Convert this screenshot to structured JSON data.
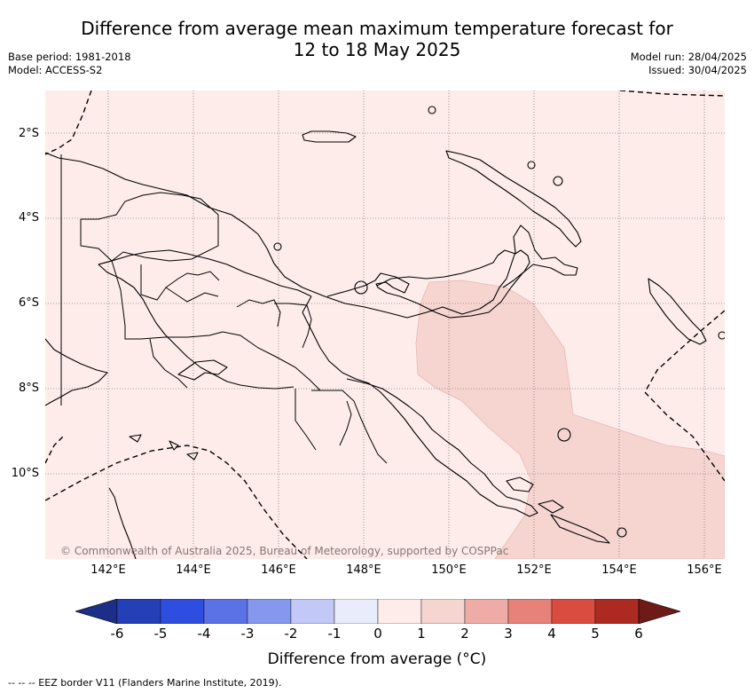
{
  "title_line1": "Difference from average mean maximum temperature forecast for",
  "title_line2": "12 to 18 May 2025",
  "base_period": "Base period: 1981-2018",
  "model": "Model: ACCESS-S2",
  "model_run": "Model run: 28/04/2025",
  "issued": "Issued: 30/04/2025",
  "lat_labels": [
    "2°S",
    "4°S",
    "6°S",
    "8°S",
    "10°S"
  ],
  "lon_labels": [
    "142°E",
    "144°E",
    "146°E",
    "148°E",
    "150°E",
    "152°E",
    "154°E",
    "156°E"
  ],
  "copyright": "© Commonwealth of Australia 2025, Bureau of Meteorology, supported by COSPPac",
  "colorbar": {
    "label": "Difference from average (°C)",
    "ticks": [
      "-6",
      "-5",
      "-4",
      "-3",
      "-2",
      "-1",
      "0",
      "1",
      "2",
      "3",
      "4",
      "5",
      "6"
    ],
    "colors": [
      "#1c2e87",
      "#2540b7",
      "#2d4ee0",
      "#5a72e6",
      "#8598ed",
      "#c3c9f6",
      "#e9ecfb",
      "#fdecea",
      "#f6d5d1",
      "#efaca6",
      "#e6827a",
      "#da4b40",
      "#ad2a23",
      "#6e1b18"
    ]
  },
  "map": {
    "background_color": "#fdecea",
    "highlight_color": "#f6d5d1"
  },
  "footnote": "-- -- -- EEZ border V11 (Flanders Marine Institute, 2019)."
}
